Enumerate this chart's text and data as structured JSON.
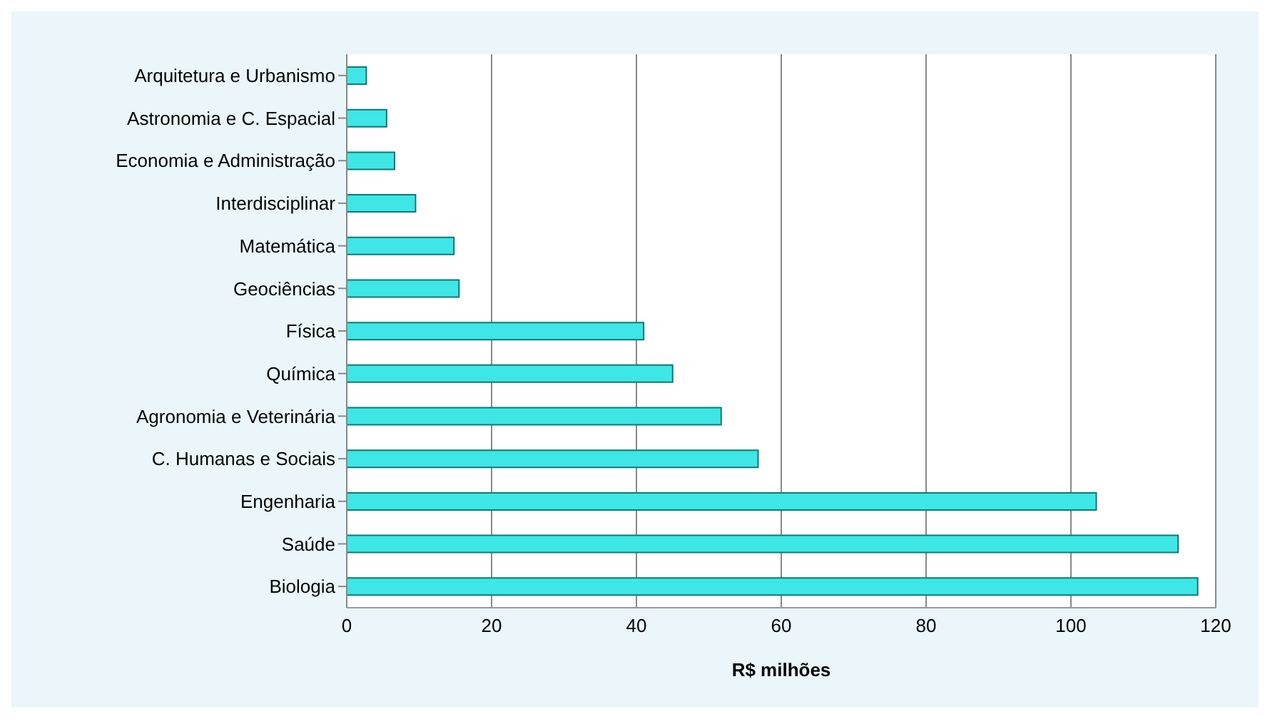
{
  "chart_data": {
    "type": "bar",
    "orientation": "horizontal",
    "xlabel": "R$ milhões",
    "categories": [
      "Arquitetura e Urbanismo",
      "Astronomia e C. Espacial",
      "Economia e Administração",
      "Interdisciplinar",
      "Matemática",
      "Geociências",
      "Física",
      "Química",
      "Agronomia e Veterinária",
      "C. Humanas e Sociais",
      "Engenharia",
      "Saúde",
      "Biologia"
    ],
    "values": [
      2.7,
      5.5,
      6.6,
      9.5,
      14.8,
      15.5,
      41,
      45,
      51.7,
      56.8,
      103.5,
      114.8,
      117.5
    ],
    "color": "#3fe6e6",
    "xlim": [
      0,
      120
    ],
    "xticks": [
      0,
      20,
      40,
      60,
      80,
      100,
      120
    ],
    "grid": "x"
  }
}
